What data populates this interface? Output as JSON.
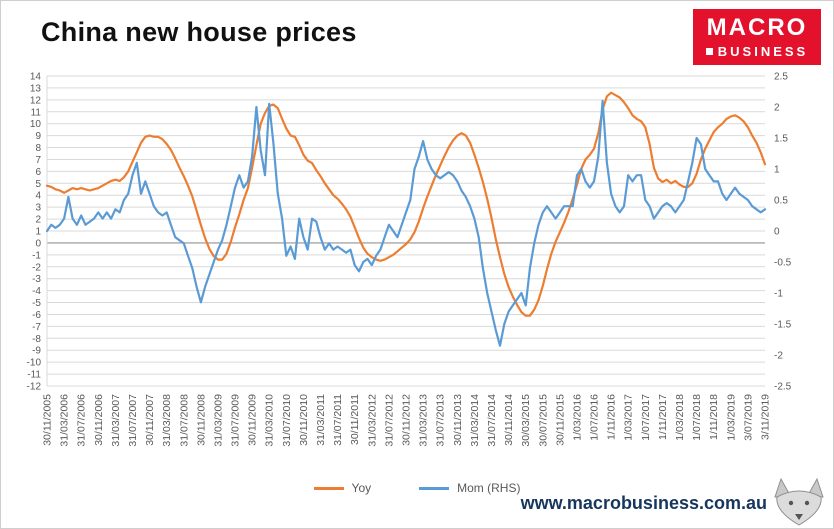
{
  "logo": {
    "line1": "MACRO",
    "line2": "BUSINESS"
  },
  "footer": {
    "website": "www.macrobusiness.com.au"
  },
  "colors": {
    "logo_bg": "#e4112d",
    "website_text": "#17365d",
    "yoy_line": "#ED7D31",
    "mom_line": "#5B9BD5",
    "grid": "#d9d9d9",
    "axis_text": "#595959"
  },
  "chart_data": {
    "type": "line",
    "title": "China new house prices",
    "grid": true,
    "legend_position": "bottom",
    "points_per_label": 4,
    "left_axis": {
      "min": -12,
      "max": 14,
      "step": 1
    },
    "right_axis": {
      "min": -2.5,
      "max": 2.5,
      "step": 0.5
    },
    "x_labels": [
      "30/11/2005",
      "31/03/2006",
      "31/07/2006",
      "30/11/2006",
      "31/03/2007",
      "31/07/2007",
      "30/11/2007",
      "31/03/2008",
      "31/07/2008",
      "30/11/2008",
      "31/03/2009",
      "31/07/2009",
      "30/11/2009",
      "31/03/2010",
      "31/07/2010",
      "30/11/2010",
      "31/03/2011",
      "31/07/2011",
      "30/11/2011",
      "31/03/2012",
      "31/07/2012",
      "30/11/2012",
      "31/03/2013",
      "31/07/2013",
      "30/11/2013",
      "31/03/2014",
      "31/07/2014",
      "30/11/2014",
      "30/03/2015",
      "30/07/2015",
      "30/11/2015",
      "1/03/2016",
      "1/07/2016",
      "1/11/2016",
      "1/03/2017",
      "1/07/2017",
      "1/11/2017",
      "1/03/2018",
      "1/07/2018",
      "1/11/2018",
      "1/03/2019",
      "3/07/2019",
      "3/11/2019"
    ],
    "series": [
      {
        "name": "Yoy",
        "axis": "left",
        "color": "#ED7D31",
        "values": [
          4.8,
          4.7,
          4.5,
          4.4,
          4.2,
          4.4,
          4.6,
          4.5,
          4.6,
          4.5,
          4.4,
          4.5,
          4.6,
          4.8,
          5.0,
          5.2,
          5.3,
          5.2,
          5.5,
          6.0,
          6.8,
          7.6,
          8.4,
          8.9,
          9.0,
          8.9,
          8.9,
          8.7,
          8.3,
          7.8,
          7.1,
          6.3,
          5.6,
          4.8,
          3.9,
          2.7,
          1.5,
          0.4,
          -0.5,
          -1.1,
          -1.4,
          -1.4,
          -0.9,
          0.1,
          1.3,
          2.4,
          3.6,
          4.6,
          6.3,
          8.2,
          10.0,
          10.9,
          11.5,
          11.6,
          11.3,
          10.4,
          9.6,
          9.0,
          8.9,
          8.2,
          7.4,
          6.9,
          6.7,
          6.1,
          5.6,
          5.0,
          4.5,
          4.0,
          3.7,
          3.3,
          2.8,
          2.2,
          1.3,
          0.4,
          -0.4,
          -0.9,
          -1.2,
          -1.4,
          -1.5,
          -1.4,
          -1.2,
          -1.0,
          -0.7,
          -0.4,
          -0.1,
          0.3,
          0.9,
          1.8,
          2.9,
          3.9,
          4.8,
          5.7,
          6.5,
          7.3,
          8.0,
          8.6,
          9.0,
          9.2,
          9.0,
          8.4,
          7.4,
          6.3,
          5.1,
          3.7,
          2.1,
          0.3,
          -1.2,
          -2.6,
          -3.7,
          -4.5,
          -5.2,
          -5.8,
          -6.1,
          -6.1,
          -5.6,
          -4.8,
          -3.6,
          -2.2,
          -0.9,
          0.1,
          0.9,
          1.7,
          2.6,
          3.7,
          4.9,
          6.2,
          7.0,
          7.4,
          7.9,
          9.2,
          11.2,
          12.3,
          12.6,
          12.4,
          12.2,
          11.8,
          11.3,
          10.7,
          10.4,
          10.2,
          9.7,
          8.3,
          6.3,
          5.4,
          5.1,
          5.3,
          5.0,
          5.2,
          4.9,
          4.7,
          4.7,
          5.0,
          5.8,
          7.0,
          7.9,
          8.6,
          9.3,
          9.7,
          10.0,
          10.4,
          10.6,
          10.7,
          10.5,
          10.2,
          9.7,
          9.0,
          8.4,
          7.6,
          6.6
        ]
      },
      {
        "name": "Mom (RHS)",
        "axis": "right",
        "color": "#5B9BD5",
        "values": [
          0.0,
          0.1,
          0.05,
          0.1,
          0.2,
          0.55,
          0.2,
          0.1,
          0.25,
          0.1,
          0.15,
          0.2,
          0.3,
          0.2,
          0.3,
          0.2,
          0.35,
          0.3,
          0.5,
          0.6,
          0.9,
          1.1,
          0.6,
          0.8,
          0.6,
          0.4,
          0.3,
          0.25,
          0.3,
          0.1,
          -0.1,
          -0.15,
          -0.2,
          -0.4,
          -0.6,
          -0.9,
          -1.15,
          -0.9,
          -0.7,
          -0.5,
          -0.3,
          -0.15,
          0.1,
          0.4,
          0.7,
          0.9,
          0.7,
          0.8,
          1.2,
          2.0,
          1.3,
          0.9,
          2.05,
          1.4,
          0.6,
          0.2,
          -0.4,
          -0.25,
          -0.45,
          0.2,
          -0.1,
          -0.3,
          0.2,
          0.15,
          -0.1,
          -0.3,
          -0.2,
          -0.3,
          -0.25,
          -0.3,
          -0.35,
          -0.3,
          -0.55,
          -0.65,
          -0.5,
          -0.45,
          -0.55,
          -0.4,
          -0.3,
          -0.1,
          0.1,
          0.0,
          -0.1,
          0.1,
          0.3,
          0.5,
          1.0,
          1.2,
          1.45,
          1.15,
          1.0,
          0.9,
          0.85,
          0.9,
          0.95,
          0.9,
          0.8,
          0.65,
          0.55,
          0.4,
          0.2,
          -0.1,
          -0.6,
          -1.0,
          -1.3,
          -1.6,
          -1.85,
          -1.5,
          -1.3,
          -1.2,
          -1.1,
          -1.0,
          -1.2,
          -0.6,
          -0.2,
          0.1,
          0.3,
          0.4,
          0.3,
          0.2,
          0.3,
          0.4,
          0.4,
          0.4,
          0.9,
          1.0,
          0.8,
          0.7,
          0.8,
          1.2,
          2.1,
          1.1,
          0.6,
          0.4,
          0.3,
          0.4,
          0.9,
          0.8,
          0.9,
          0.9,
          0.5,
          0.4,
          0.2,
          0.3,
          0.4,
          0.45,
          0.4,
          0.3,
          0.4,
          0.5,
          0.8,
          1.1,
          1.5,
          1.4,
          1.0,
          0.9,
          0.8,
          0.8,
          0.6,
          0.5,
          0.6,
          0.7,
          0.6,
          0.55,
          0.5,
          0.4,
          0.35,
          0.3,
          0.35
        ]
      }
    ]
  }
}
